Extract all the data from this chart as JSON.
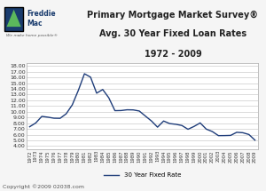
{
  "title_line1": "Primary Mortgage Market Survey®",
  "title_line2": "Avg. 30 Year Fixed Loan Rates",
  "title_line3": "1972 - 2009",
  "ylabel_values": [
    "4.00",
    "5.00",
    "6.00",
    "7.00",
    "8.00",
    "9.00",
    "10.00",
    "11.00",
    "12.00",
    "13.00",
    "14.00",
    "15.00",
    "16.00",
    "17.00",
    "18.00"
  ],
  "ylim": [
    3.5,
    18.5
  ],
  "legend_label": "30 Year Fixed Rate",
  "copyright": "Copyright ©2009 02038.com",
  "line_color": "#1f3d7a",
  "background_color": "#f5f5f5",
  "plot_bg_color": "#ffffff",
  "years": [
    1972,
    1973,
    1974,
    1975,
    1976,
    1977,
    1978,
    1979,
    1980,
    1981,
    1982,
    1983,
    1984,
    1985,
    1986,
    1987,
    1988,
    1989,
    1990,
    1991,
    1992,
    1993,
    1994,
    1995,
    1996,
    1997,
    1998,
    1999,
    2000,
    2001,
    2002,
    2003,
    2004,
    2005,
    2006,
    2007,
    2008,
    2009
  ],
  "rates": [
    7.38,
    8.04,
    9.19,
    9.05,
    8.87,
    8.85,
    9.64,
    11.2,
    13.74,
    16.63,
    16.04,
    13.24,
    13.88,
    12.43,
    10.19,
    10.21,
    10.34,
    10.32,
    10.13,
    9.25,
    8.39,
    7.31,
    8.38,
    7.93,
    7.81,
    7.6,
    6.94,
    7.44,
    8.05,
    6.97,
    6.54,
    5.83,
    5.84,
    5.87,
    6.41,
    6.34,
    6.03,
    5.04
  ]
}
